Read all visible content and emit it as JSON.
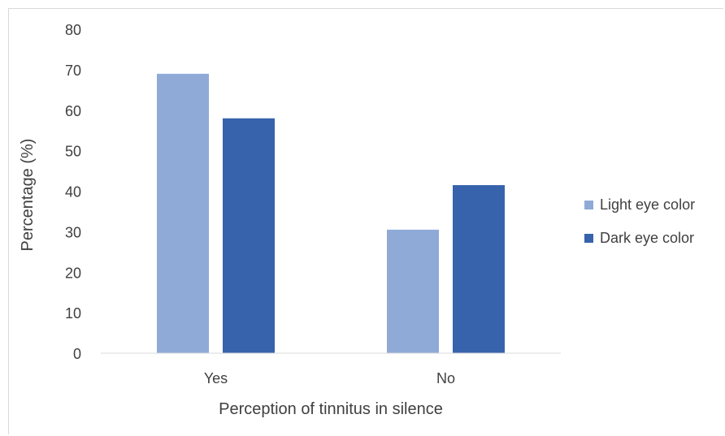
{
  "chart_data": {
    "type": "bar",
    "title": "",
    "xlabel": "Perception of tinnitus in silence",
    "ylabel": "Percentage (%)",
    "categories": [
      "Yes",
      "No"
    ],
    "series": [
      {
        "name": "Light eye color",
        "values": [
          69,
          30.5
        ],
        "color": "#8faad6"
      },
      {
        "name": "Dark eye color",
        "values": [
          58,
          41.5
        ],
        "color": "#3763ad"
      }
    ],
    "ylim": [
      0,
      80
    ],
    "yticks": [
      0,
      10,
      20,
      30,
      40,
      50,
      60,
      70,
      80
    ],
    "grid": false,
    "legend": "right"
  }
}
